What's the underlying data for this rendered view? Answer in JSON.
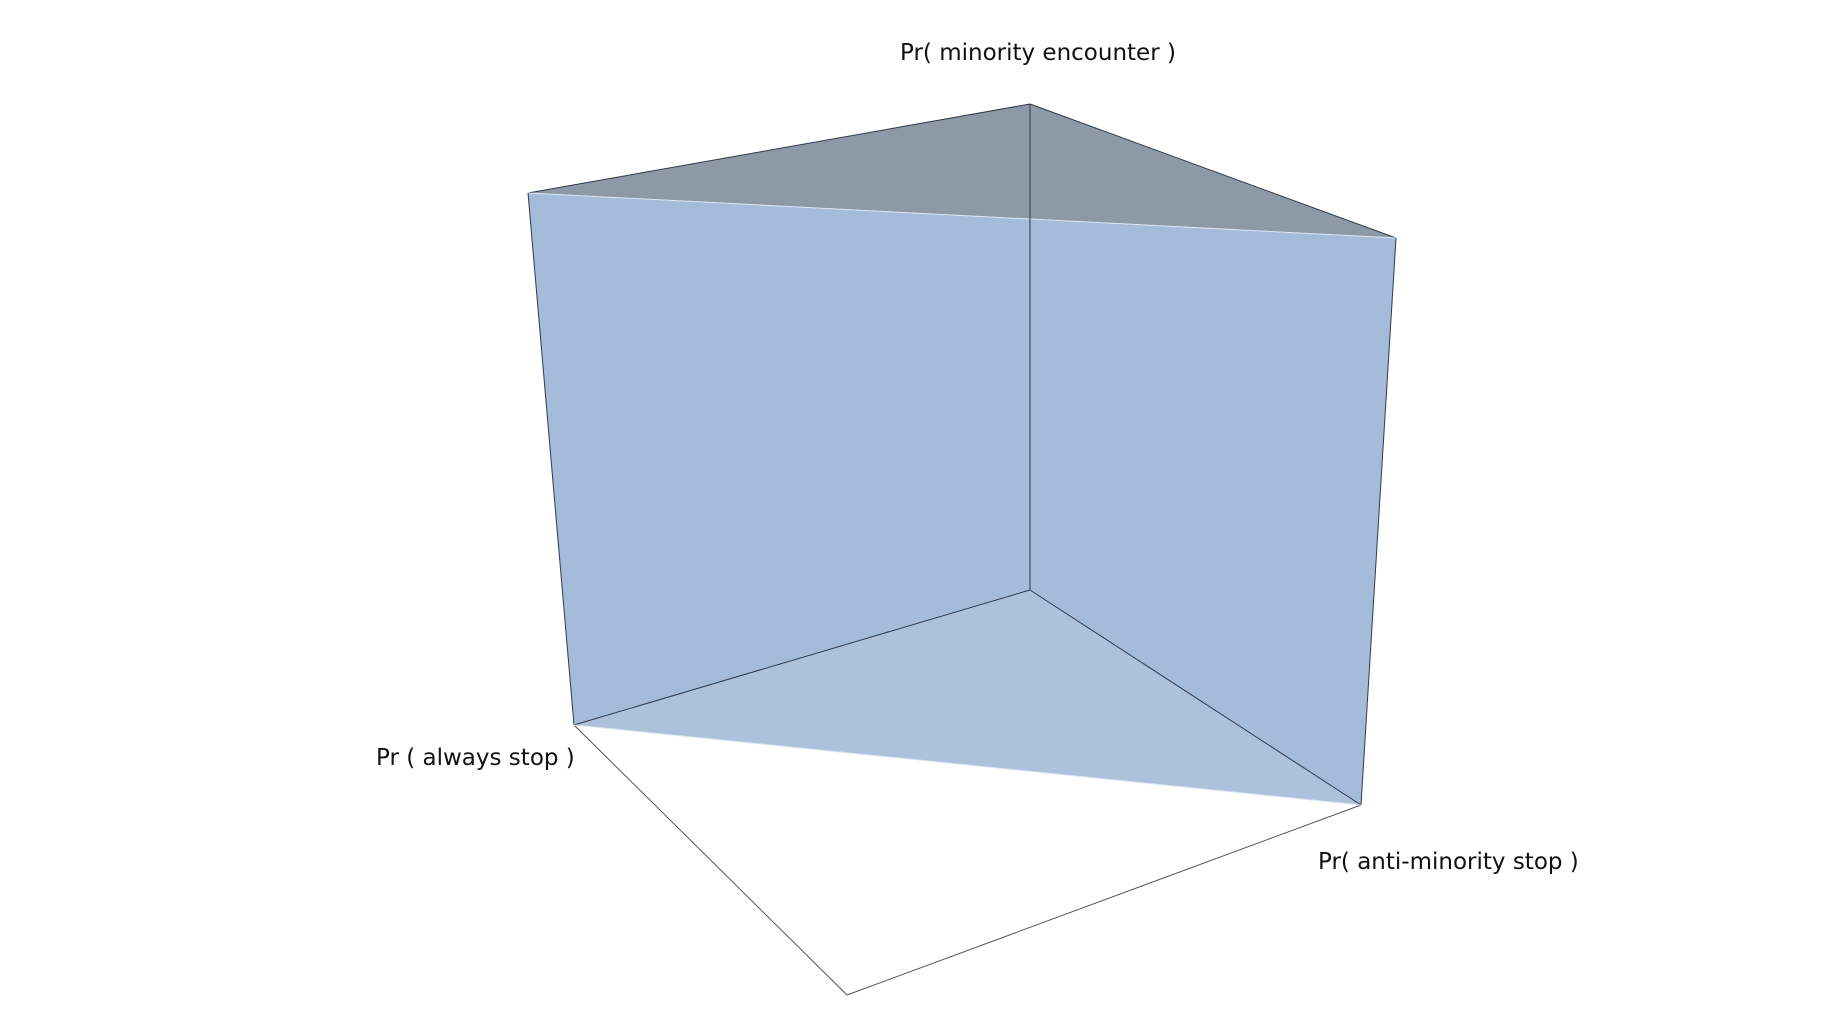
{
  "diagram": {
    "type": "3d-triangular-prism",
    "axis_labels": {
      "top": "Pr( minority encounter )",
      "left": "Pr ( always stop )",
      "right": "Pr( anti-minority stop )"
    },
    "colors": {
      "side_faces": "#a3b9d8",
      "top_face": "#8d99a6",
      "edges": "#2f3a4a",
      "floor_edges": "#555555",
      "background": "#ffffff"
    }
  }
}
